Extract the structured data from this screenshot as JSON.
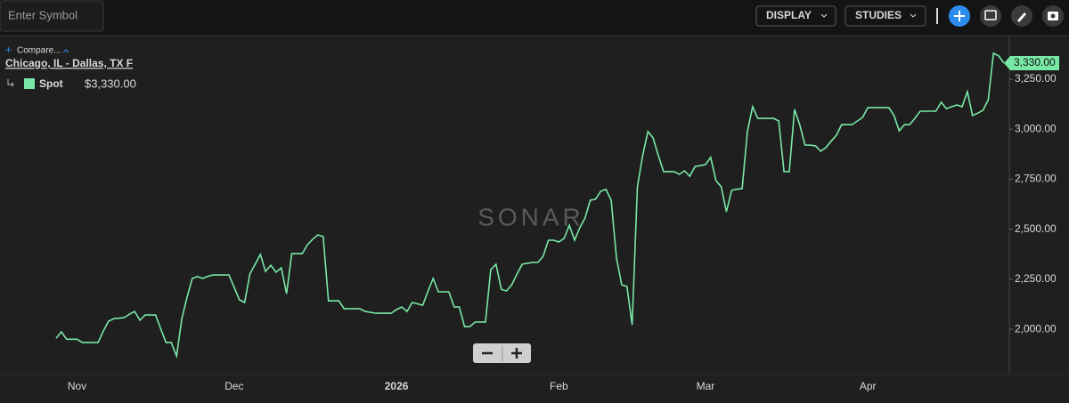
{
  "toolbar": {
    "symbol_placeholder": "Enter Symbol",
    "display": "DISPLAY",
    "studies": "STUDIES"
  },
  "legend": {
    "compare": "Compare...",
    "lane": "Chicago, IL - Dallas, TX F",
    "series_value": "$3,330.00"
  },
  "watermark": "SONAR",
  "chart_data": {
    "type": "line",
    "categories": [
      null,
      null,
      null,
      null,
      "Nov",
      null,
      null,
      null,
      null,
      null,
      null,
      null,
      null,
      null,
      null,
      null,
      null,
      null,
      null,
      null,
      null,
      null,
      null,
      null,
      null,
      null,
      null,
      null,
      null,
      null,
      null,
      null,
      null,
      null,
      "Dec",
      null,
      null,
      null,
      null,
      null,
      null,
      null,
      null,
      null,
      null,
      null,
      null,
      null,
      null,
      null,
      null,
      null,
      null,
      null,
      null,
      null,
      null,
      null,
      null,
      null,
      null,
      null,
      null,
      null,
      null,
      "2026",
      null,
      null,
      null,
      null,
      null,
      null,
      null,
      null,
      null,
      null,
      null,
      null,
      null,
      null,
      null,
      null,
      null,
      null,
      null,
      null,
      null,
      null,
      null,
      null,
      null,
      null,
      null,
      null,
      null,
      null,
      "Feb",
      null,
      null,
      null,
      null,
      null,
      null,
      null,
      null,
      null,
      null,
      null,
      null,
      null,
      null,
      null,
      null,
      null,
      null,
      null,
      null,
      null,
      null,
      null,
      null,
      null,
      null,
      null,
      "Mar",
      null,
      null,
      null,
      null,
      null,
      null,
      null,
      null,
      null,
      null,
      null,
      null,
      null,
      null,
      null,
      null,
      null,
      null,
      null,
      null,
      null,
      null,
      null,
      null,
      null,
      null,
      null,
      null,
      null,
      null,
      "Apr",
      null,
      null,
      null,
      null,
      null,
      null,
      null,
      null,
      null,
      null,
      null,
      null,
      null,
      null,
      null,
      null,
      null,
      null,
      null,
      null,
      null,
      null,
      null,
      null,
      null,
      null
    ],
    "series": [
      {
        "name": "Spot",
        "color": "#79e8a6",
        "values": [
          1955,
          1987,
          1950,
          1950,
          1950,
          1933,
          1933,
          1933,
          1933,
          1990,
          2040,
          2053,
          2055,
          2058,
          2075,
          2089,
          2045,
          2071,
          2071,
          2071,
          2000,
          1933,
          1933,
          1866,
          2053,
          2160,
          2254,
          2263,
          2254,
          2265,
          2271,
          2271,
          2271,
          2271,
          2210,
          2147,
          2134,
          2276,
          2325,
          2374,
          2289,
          2320,
          2285,
          2307,
          2178,
          2378,
          2378,
          2378,
          2423,
          2450,
          2472,
          2463,
          2142,
          2142,
          2142,
          2102,
          2102,
          2102,
          2102,
          2089,
          2085,
          2080,
          2080,
          2080,
          2080,
          2098,
          2111,
          2089,
          2134,
          2127,
          2120,
          2190,
          2254,
          2187,
          2187,
          2187,
          2111,
          2111,
          2013,
          2013,
          2036,
          2036,
          2036,
          2298,
          2325,
          2200,
          2191,
          2222,
          2275,
          2325,
          2330,
          2334,
          2334,
          2365,
          2445,
          2445,
          2436,
          2454,
          2520,
          2445,
          2507,
          2556,
          2645,
          2650,
          2690,
          2699,
          2645,
          2356,
          2222,
          2214,
          2022,
          2712,
          2868,
          2988,
          2957,
          2868,
          2788,
          2788,
          2788,
          2774,
          2792,
          2765,
          2814,
          2818,
          2823,
          2859,
          2743,
          2712,
          2587,
          2694,
          2700,
          2703,
          2988,
          3112,
          3054,
          3054,
          3054,
          3054,
          3041,
          2788,
          2788,
          3099,
          3023,
          2921,
          2920,
          2917,
          2890,
          2908,
          2940,
          2970,
          3023,
          3023,
          3023,
          3041,
          3059,
          3108,
          3108,
          3108,
          3108,
          3108,
          3068,
          2992,
          3023,
          3023,
          3055,
          3090,
          3090,
          3090,
          3090,
          3135,
          3103,
          3112,
          3121,
          3112,
          3188,
          3068,
          3080,
          3095,
          3148,
          3380,
          3366,
          3330
        ]
      }
    ],
    "last_value_label": "3,330.00",
    "ylim": [
      1778,
      3468
    ],
    "yticks": [
      {
        "value": 2000,
        "label": "2,000.00"
      },
      {
        "value": 2250,
        "label": "2,250.00"
      },
      {
        "value": 2500,
        "label": "2,500.00"
      },
      {
        "value": 2750,
        "label": "2,750.00"
      },
      {
        "value": 3000,
        "label": "3,000.00"
      },
      {
        "value": 3250,
        "label": "3,250.00"
      }
    ],
    "grid": false
  }
}
